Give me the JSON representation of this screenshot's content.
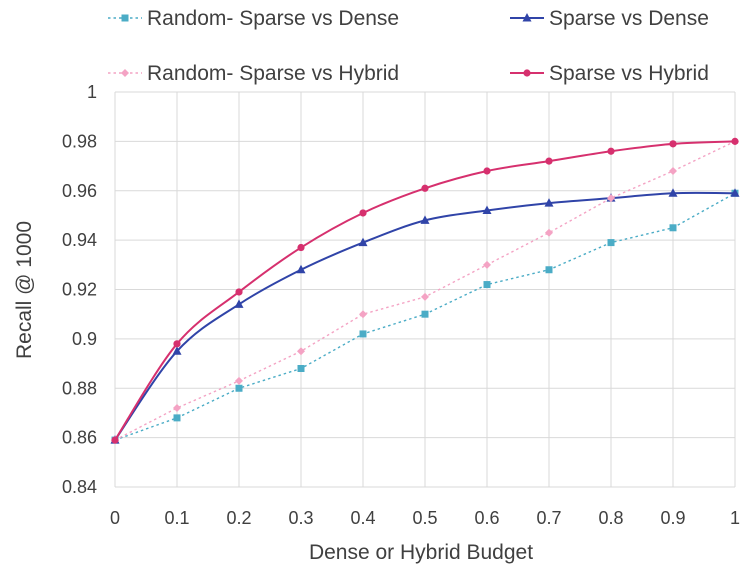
{
  "chart_data": {
    "type": "line",
    "title": "",
    "xlabel": "Dense or Hybrid Budget",
    "ylabel": "Recall @ 1000",
    "x": [
      0,
      0.1,
      0.2,
      0.3,
      0.4,
      0.5,
      0.6,
      0.7,
      0.8,
      0.9,
      1
    ],
    "x_tick_labels": [
      "0",
      "0.1",
      "0.2",
      "0.3",
      "0.4",
      "0.5",
      "0.6",
      "0.7",
      "0.8",
      "0.9",
      "1"
    ],
    "xlim": [
      0,
      1
    ],
    "ylim": [
      0.84,
      1
    ],
    "y_ticks": [
      0.84,
      0.86,
      0.88,
      0.9,
      0.92,
      0.94,
      0.96,
      0.98,
      1
    ],
    "y_tick_labels": [
      "0.84",
      "0.86",
      "0.88",
      "0.9",
      "0.92",
      "0.94",
      "0.96",
      "0.98",
      "1"
    ],
    "grid": true,
    "legend_position": "top",
    "series": [
      {
        "name": "Random- Sparse vs Dense",
        "values": [
          0.859,
          0.868,
          0.88,
          0.888,
          0.902,
          0.91,
          0.922,
          0.928,
          0.939,
          0.945,
          0.959
        ],
        "color": "#4bacc6",
        "line_style": "dotted",
        "marker": "square"
      },
      {
        "name": "Sparse vs Dense",
        "values": [
          0.859,
          0.895,
          0.914,
          0.928,
          0.939,
          0.948,
          0.952,
          0.955,
          0.957,
          0.959,
          0.959
        ],
        "color": "#3044a8",
        "line_style": "solid",
        "marker": "triangle"
      },
      {
        "name": "Random- Sparse vs Hybrid",
        "values": [
          0.859,
          0.872,
          0.883,
          0.895,
          0.91,
          0.917,
          0.93,
          0.943,
          0.957,
          0.968,
          0.98
        ],
        "color": "#f4a3c4",
        "line_style": "dotted",
        "marker": "diamond"
      },
      {
        "name": "Sparse vs Hybrid",
        "values": [
          0.859,
          0.898,
          0.919,
          0.937,
          0.951,
          0.961,
          0.968,
          0.972,
          0.976,
          0.979,
          0.98
        ],
        "color": "#d6306e",
        "line_style": "solid",
        "marker": "circle"
      }
    ]
  }
}
